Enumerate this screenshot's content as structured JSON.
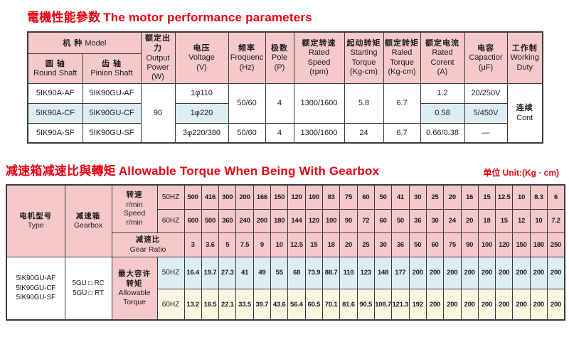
{
  "theme": {
    "accent_red": "#e60012",
    "pink": "#f5c9c9",
    "blue": "#dcedf4",
    "cream": "#faf6e2",
    "border": "#3b3b3b"
  },
  "motor": {
    "title": {
      "zh": "電機性能參数",
      "en": "The motor performance parameters"
    },
    "headers": {
      "model": {
        "zh": "机  种",
        "en": "Model"
      },
      "round_shaft": {
        "zh": "圆 轴",
        "en": "Round Shaft"
      },
      "pinion_shaft": {
        "zh": "齿 轴",
        "en": "Pinion Shaft"
      },
      "output_power": {
        "zh": "额定出力",
        "en": "Output\nPower\n(W)"
      },
      "voltage": {
        "zh": "电压",
        "en": "Voltage\n(V)"
      },
      "frequency": {
        "zh": "频率",
        "en": "Froquenc\n(Hz)"
      },
      "pole": {
        "zh": "极数",
        "en": "Pole\n(P)"
      },
      "rated_speed": {
        "zh": "额定转速",
        "en": "Rated\nSpeed\n(rpm)"
      },
      "starting_torque": {
        "zh": "起动转矩",
        "en": "Starting\nTorque\n(Kg-cm)"
      },
      "rated_torque": {
        "zh": "额定转矩",
        "en": "Raled\nTorque\n(Kg-cm)"
      },
      "rated_current": {
        "zh": "额定电流",
        "en": "Rated\nCorent\n(A)"
      },
      "capacitor": {
        "zh": "电容",
        "en": "Capactior\n(μF)"
      },
      "working_duty": {
        "zh": "工作制",
        "en": "Working\nDuty"
      }
    },
    "merged": {
      "output_power": "90",
      "frequency_12": "50/60",
      "pole_12": "4",
      "rated_speed_12": "1300/1600",
      "starting_torque_12": "5.8",
      "rated_torque_12": "6.7",
      "working_duty": {
        "zh": "连续",
        "en": "Cont"
      }
    },
    "rows": [
      {
        "round_shaft": "5IK90A-AF",
        "pinion_shaft": "5IK90GU-AF",
        "voltage": "1φ110",
        "rated_current": "1.2",
        "capacitor": "20/250V"
      },
      {
        "round_shaft": "5IK90A-CF",
        "pinion_shaft": "5IK90GU-CF",
        "voltage": "1φ220",
        "rated_current": "0.58",
        "capacitor": "5/450V"
      },
      {
        "round_shaft": "5IK90A-SF",
        "pinion_shaft": "5IK90GU-SF",
        "voltage": "3φ220/380",
        "frequency": "50/60",
        "pole": "4",
        "rated_speed": "1300/1600",
        "starting_torque": "24",
        "rated_torque": "6.7",
        "rated_current": "0.66/0.38",
        "capacitor": "—"
      }
    ]
  },
  "gearbox": {
    "title": {
      "zh": "减速箱减速比與轉矩",
      "en": "Allowable Torque When Being With Gearbox"
    },
    "unit": "单位 Unit:(Kg · cm)",
    "headers": {
      "type": {
        "zh": "电机型号",
        "en": "Type"
      },
      "gearbox": {
        "zh": "减速箱",
        "en": "Gearbox"
      },
      "speed": {
        "zh": "转速",
        "en": "r/min\nSpeed\nr/min"
      },
      "gear_ratio": {
        "zh": "减速比",
        "en": "Gear Ratio"
      },
      "allowable_torque": {
        "zh": "最大容许\n转矩",
        "en": "Allowable\nTorque"
      },
      "hz50": "50HZ",
      "hz60": "60HZ"
    },
    "type_models": "5IK90GU-AF\n5IK90GU-CF\n5IK90GU-SF",
    "gearbox_models": "5GU □ RC\n5GU □ RT",
    "speed_50hz": [
      "500",
      "416",
      "300",
      "200",
      "166",
      "150",
      "120",
      "100",
      "83",
      "75",
      "60",
      "50",
      "41",
      "30",
      "25",
      "20",
      "16",
      "15",
      "12.5",
      "10",
      "8.3",
      "6"
    ],
    "speed_60hz": [
      "600",
      "500",
      "360",
      "240",
      "200",
      "180",
      "144",
      "120",
      "100",
      "90",
      "72",
      "60",
      "50",
      "36",
      "30",
      "24",
      "20",
      "18",
      "15",
      "12",
      "10",
      "7.2"
    ],
    "gear_ratio": [
      "3",
      "3.6",
      "5",
      "7.5",
      "9",
      "10",
      "12.5",
      "15",
      "18",
      "20",
      "25",
      "30",
      "36",
      "50",
      "60",
      "75",
      "90",
      "100",
      "120",
      "150",
      "180",
      "250"
    ],
    "torque_50hz": [
      "16.4",
      "19.7",
      "27.3",
      "41",
      "49",
      "55",
      "68",
      "73.9",
      "88.7",
      "110",
      "123",
      "148",
      "177",
      "200",
      "200",
      "200",
      "200",
      "200",
      "200",
      "200",
      "200",
      "200"
    ],
    "torque_60hz": [
      "13.2",
      "16.5",
      "22.1",
      "33.5",
      "39.7",
      "43.6",
      "56.4",
      "60.5",
      "70.1",
      "81.6",
      "90.5",
      "108.7",
      "121.3",
      "192",
      "200",
      "200",
      "200",
      "200",
      "200",
      "200",
      "200",
      "200"
    ]
  }
}
